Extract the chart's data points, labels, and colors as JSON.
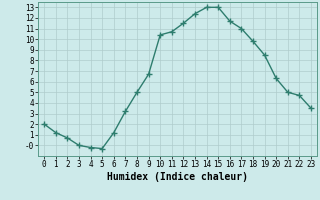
{
  "x": [
    0,
    1,
    2,
    3,
    4,
    5,
    6,
    7,
    8,
    9,
    10,
    11,
    12,
    13,
    14,
    15,
    16,
    17,
    18,
    19,
    20,
    21,
    22,
    23
  ],
  "y": [
    2.0,
    1.2,
    0.7,
    0.0,
    -0.2,
    -0.3,
    1.2,
    3.2,
    5.0,
    6.7,
    10.4,
    10.7,
    11.5,
    12.4,
    13.0,
    13.0,
    11.7,
    11.0,
    9.8,
    8.5,
    6.3,
    5.0,
    4.7,
    3.5
  ],
  "line_color": "#2e7d6e",
  "marker": "+",
  "markersize": 4,
  "linewidth": 1.0,
  "bg_color": "#cdeaea",
  "grid_color": "#b0cccc",
  "xlabel": "Humidex (Indice chaleur)",
  "xlim": [
    -0.5,
    23.5
  ],
  "ylim": [
    -1.0,
    13.5
  ],
  "yticks": [
    0,
    1,
    2,
    3,
    4,
    5,
    6,
    7,
    8,
    9,
    10,
    11,
    12,
    13
  ],
  "ytick_labels": [
    "-0",
    "1",
    "2",
    "3",
    "4",
    "5",
    "6",
    "7",
    "8",
    "9",
    "10",
    "11",
    "12",
    "13"
  ],
  "xticks": [
    0,
    1,
    2,
    3,
    4,
    5,
    6,
    7,
    8,
    9,
    10,
    11,
    12,
    13,
    14,
    15,
    16,
    17,
    18,
    19,
    20,
    21,
    22,
    23
  ],
  "xtick_labels": [
    "0",
    "1",
    "2",
    "3",
    "4",
    "5",
    "6",
    "7",
    "8",
    "9",
    "10",
    "11",
    "12",
    "13",
    "14",
    "15",
    "16",
    "17",
    "18",
    "19",
    "20",
    "21",
    "22",
    "23"
  ],
  "tick_fontsize": 5.5,
  "xlabel_fontsize": 7,
  "spine_color": "#5a9a8a"
}
